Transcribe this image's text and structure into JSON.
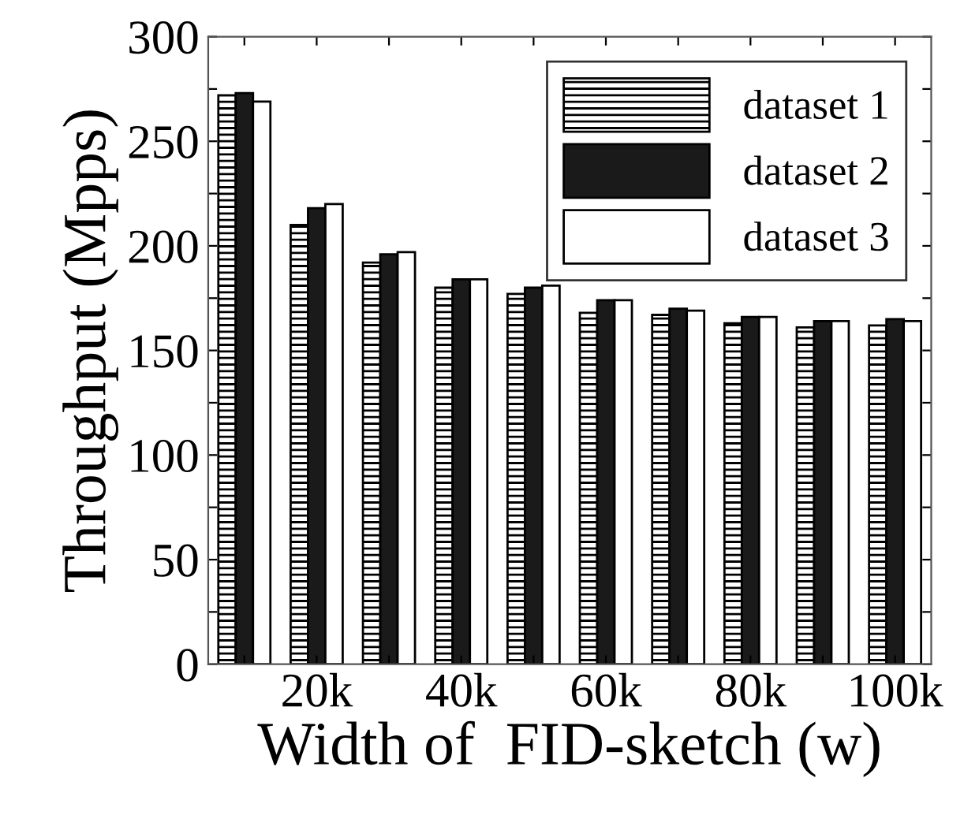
{
  "chart_data": {
    "type": "bar",
    "xlabel": "Width of  FID-sketch (w)",
    "ylabel": "Throughput (Mpps)",
    "categories": [
      null,
      "20k",
      null,
      "40k",
      null,
      "60k",
      null,
      "80k",
      null,
      "100k"
    ],
    "series": [
      {
        "name": "dataset 1",
        "color": "#000000",
        "values": [
          272,
          210,
          192,
          180,
          177,
          168,
          167,
          163,
          161,
          162
        ]
      },
      {
        "name": "dataset 2",
        "color": "#1a1a1a",
        "values": [
          273,
          218,
          196,
          184,
          180,
          174,
          170,
          166,
          164,
          165
        ]
      },
      {
        "name": "dataset 3",
        "color": "#ffffff",
        "values": [
          269,
          220,
          197,
          184,
          181,
          174,
          169,
          166,
          164,
          164
        ]
      }
    ],
    "ylim": [
      0,
      300
    ],
    "yticks": [
      0,
      {
        "value": 25,
        "label": null
      },
      50,
      {
        "value": 75,
        "label": null
      },
      100,
      {
        "value": 125,
        "label": null
      },
      150,
      {
        "value": 175,
        "label": null
      },
      200,
      {
        "value": 225,
        "label": null
      },
      250,
      {
        "value": 275,
        "label": null
      },
      300
    ],
    "grid": false,
    "legend": "top right"
  }
}
